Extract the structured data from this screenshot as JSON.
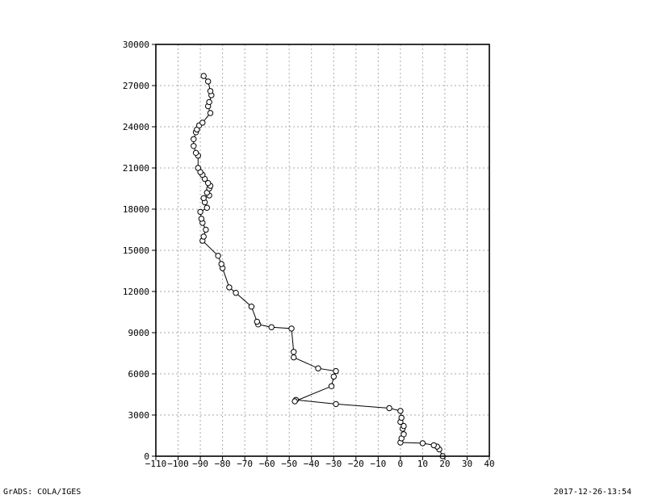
{
  "chart_data": {
    "type": "line",
    "title": "",
    "xlabel": "",
    "ylabel": "",
    "xlim": [
      -110,
      40
    ],
    "ylim": [
      0,
      30000
    ],
    "x_ticks": [
      -110,
      -100,
      -90,
      -80,
      -70,
      -60,
      -50,
      -40,
      -30,
      -20,
      -10,
      0,
      10,
      20,
      30,
      40
    ],
    "x_tick_labels": [
      "−110",
      "−100",
      "−90",
      "−80",
      "−70",
      "−60",
      "−50",
      "−40",
      "−30",
      "−20",
      "−10",
      "0",
      "10",
      "20",
      "30",
      "40"
    ],
    "y_ticks": [
      0,
      3000,
      6000,
      9000,
      12000,
      15000,
      18000,
      21000,
      24000,
      27000,
      30000
    ],
    "y_tick_labels": [
      "0",
      "3000",
      "6000",
      "9000",
      "12000",
      "15000",
      "18000",
      "21000",
      "24000",
      "27000",
      "30000"
    ],
    "grid": true,
    "marker": "open-circle",
    "line_color": "#000000",
    "series": [
      {
        "points": [
          [
            19,
            0
          ],
          [
            17.5,
            500
          ],
          [
            16.5,
            700
          ],
          [
            15,
            800
          ],
          [
            10,
            950
          ],
          [
            0,
            1000
          ],
          [
            0.5,
            1300
          ],
          [
            1.5,
            1600
          ],
          [
            1,
            2000
          ],
          [
            1.5,
            2200
          ],
          [
            0,
            2500
          ],
          [
            0.5,
            2800
          ],
          [
            0,
            3300
          ],
          [
            -5,
            3500
          ],
          [
            -29,
            3800
          ],
          [
            -47,
            4100
          ],
          [
            -47.5,
            4000
          ],
          [
            -31,
            5100
          ],
          [
            -30,
            5800
          ],
          [
            -29,
            6200
          ],
          [
            -37,
            6400
          ],
          [
            -48,
            7200
          ],
          [
            -48,
            7600
          ],
          [
            -49,
            9300
          ],
          [
            -58,
            9400
          ],
          [
            -64,
            9600
          ],
          [
            -64.5,
            9800
          ],
          [
            -67,
            10900
          ],
          [
            -74,
            11900
          ],
          [
            -77,
            12300
          ],
          [
            -80,
            13700
          ],
          [
            -80.5,
            14000
          ],
          [
            -82,
            14600
          ],
          [
            -89,
            15700
          ],
          [
            -88.5,
            16000
          ],
          [
            -87.5,
            16500
          ],
          [
            -89,
            17000
          ],
          [
            -89.5,
            17300
          ],
          [
            -90,
            17800
          ],
          [
            -87,
            18100
          ],
          [
            -88,
            18500
          ],
          [
            -88.5,
            18800
          ],
          [
            -86,
            19000
          ],
          [
            -87,
            19200
          ],
          [
            -86,
            19500
          ],
          [
            -85.5,
            19700
          ],
          [
            -86.5,
            19900
          ],
          [
            -88,
            20200
          ],
          [
            -89,
            20500
          ],
          [
            -90,
            20700
          ],
          [
            -91,
            21000
          ],
          [
            -91,
            21900
          ],
          [
            -92,
            22100
          ],
          [
            -93,
            22600
          ],
          [
            -93,
            23100
          ],
          [
            -92,
            23600
          ],
          [
            -91.5,
            23800
          ],
          [
            -90.5,
            24100
          ],
          [
            -89,
            24300
          ],
          [
            -85.5,
            25000
          ],
          [
            -86.5,
            25500
          ],
          [
            -86,
            25800
          ],
          [
            -85,
            26300
          ],
          [
            -85.5,
            26600
          ],
          [
            -86.5,
            27300
          ],
          [
            -88.5,
            27700
          ]
        ]
      }
    ]
  },
  "footer": {
    "left": "GrADS: COLA/IGES",
    "right": "2017-12-26-13:54"
  }
}
